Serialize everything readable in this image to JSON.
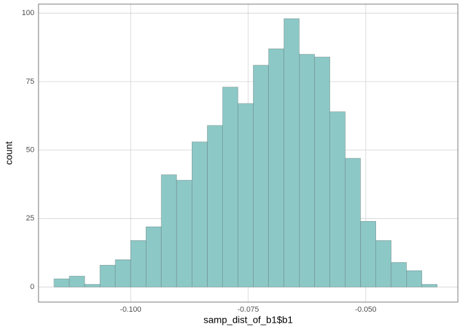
{
  "chart_data": {
    "type": "histogram",
    "xlabel": "samp_dist_of_b1$b1",
    "ylabel": "count",
    "bins": [
      -0.1163,
      -0.11304,
      -0.10978,
      -0.10652,
      -0.10326,
      -0.1,
      -0.09674,
      -0.09348,
      -0.09022,
      -0.08696,
      -0.0837,
      -0.08044,
      -0.07718,
      -0.07392,
      -0.07066,
      -0.0674,
      -0.06414,
      -0.06088,
      -0.05762,
      -0.05436,
      -0.0511,
      -0.04784,
      -0.04458,
      -0.04132,
      -0.03806,
      -0.0348
    ],
    "values": [
      3,
      4,
      1,
      8,
      10,
      17,
      22,
      41,
      39,
      53,
      59,
      73,
      67,
      81,
      87,
      98,
      85,
      84,
      64,
      47,
      24,
      17,
      9,
      6,
      1
    ],
    "color": "#8cc8c6",
    "edgecolor": "#5a6a6a",
    "xlim": [
      -0.1196,
      -0.0304
    ],
    "ylim": [
      -5.5,
      103.3
    ],
    "xticks": [
      {
        "value": -0.1,
        "label": "-0.100"
      },
      {
        "value": -0.075,
        "label": "-0.075"
      },
      {
        "value": -0.05,
        "label": "-0.050"
      }
    ],
    "yticks": [
      0,
      25,
      50,
      75,
      100
    ],
    "grid": true
  }
}
